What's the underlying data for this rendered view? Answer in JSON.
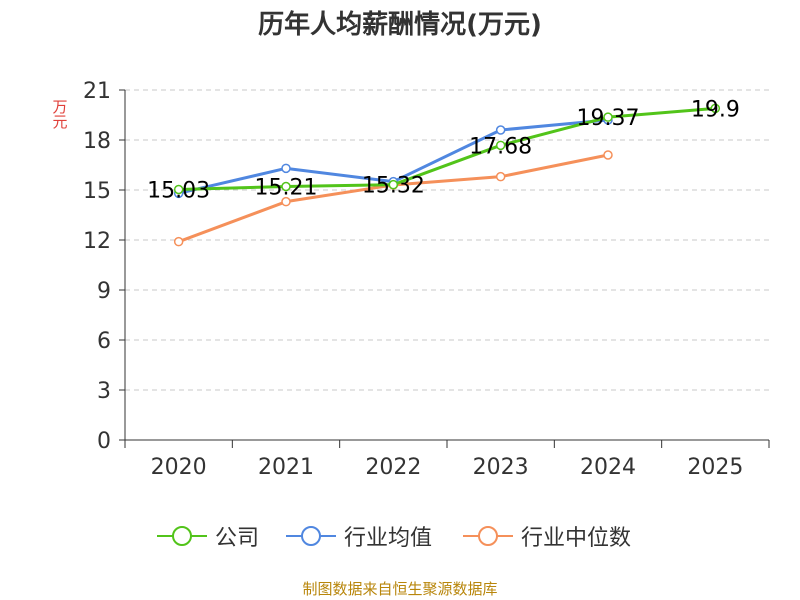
{
  "chart_data": {
    "type": "line",
    "title": "历年人均薪酬情况(万元)",
    "ylabel": "万元",
    "xlabel": "",
    "categories": [
      "2020",
      "2021",
      "2022",
      "2023",
      "2024",
      "2025"
    ],
    "ylim": [
      0,
      21
    ],
    "yticks": [
      0,
      3,
      6,
      9,
      12,
      15,
      18,
      21
    ],
    "grid": true,
    "legend_position": "bottom",
    "series": [
      {
        "name": "公司",
        "color": "#52c41a",
        "values": [
          15.03,
          15.21,
          15.32,
          17.68,
          19.37,
          19.9
        ],
        "labels": [
          "15.03",
          "15.21",
          "15.32",
          "17.68",
          "19.37",
          "19.9"
        ]
      },
      {
        "name": "行业均值",
        "color": "#5087e0",
        "values": [
          14.8,
          16.3,
          15.5,
          18.6,
          19.2,
          null
        ],
        "labels": null
      },
      {
        "name": "行业中位数",
        "color": "#f5905a",
        "values": [
          11.9,
          14.3,
          15.3,
          15.8,
          17.1,
          null
        ],
        "labels": null
      }
    ]
  },
  "footer": {
    "source": "制图数据来自恒生聚源数据库"
  }
}
